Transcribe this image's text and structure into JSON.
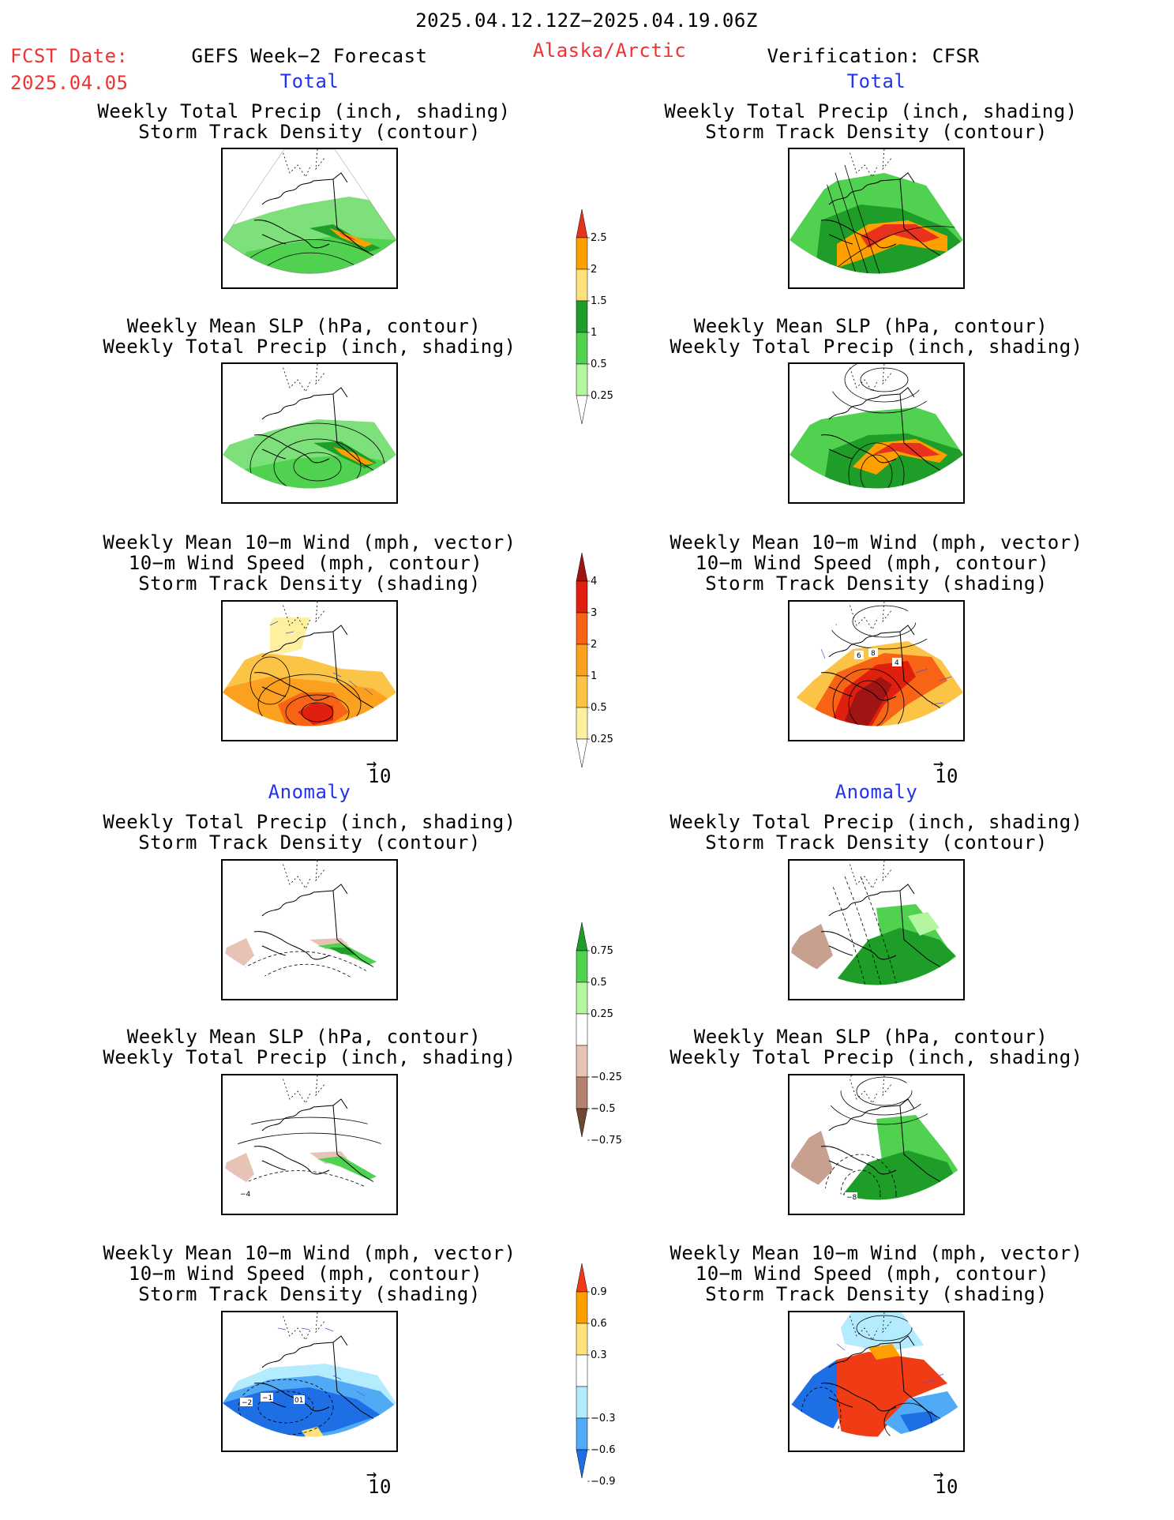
{
  "header": {
    "period": "2025.04.12.12Z−2025.04.19.06Z",
    "fcst_label": "FCST Date:",
    "fcst_date": "2025.04.05",
    "forecast_title": "GEFS Week−2 Forecast",
    "region": "Alaska/Arctic",
    "verification": "Verification: CFSR"
  },
  "sections": {
    "total": "Total",
    "anomaly": "Anomaly"
  },
  "titles": {
    "precip_track": [
      "Weekly Total Precip (inch, shading)",
      "Storm Track Density (contour)"
    ],
    "slp_precip": [
      "Weekly Mean SLP (hPa, contour)",
      "Weekly Total Precip (inch, shading)"
    ],
    "wind_track": [
      "Weekly Mean 10−m Wind (mph, vector)",
      "10−m Wind Speed (mph, contour)",
      "Storm Track Density (shading)"
    ]
  },
  "vector_ref": "10",
  "colorbars": {
    "precip_total": {
      "labels": [
        "2.5",
        "2",
        "1.5",
        "1",
        "0.5",
        "0.25"
      ],
      "colors": [
        "#e8321e",
        "#ffa000",
        "#ffe37a",
        "#1e9e28",
        "#50d250",
        "#b4f5a0"
      ]
    },
    "track_total": {
      "labels": [
        "4",
        "3",
        "2",
        "1",
        "0.5",
        "0.25"
      ],
      "colors": [
        "#a01414",
        "#e0200e",
        "#f86416",
        "#fca020",
        "#fcc446",
        "#fff0a0"
      ]
    },
    "precip_anom": {
      "labels": [
        "0.75",
        "0.5",
        "0.25",
        "−0.25",
        "−0.5",
        "−0.75"
      ],
      "colors": [
        "#1e9e28",
        "#50d250",
        "#b4f5a0",
        "#ffffff",
        "#e6c3b4",
        "#b4826e",
        "#6e4632"
      ]
    },
    "track_anom": {
      "labels": [
        "0.9",
        "0.6",
        "0.3",
        "−0.3",
        "−0.6",
        "−0.9"
      ],
      "colors": [
        "#f03c14",
        "#ffa000",
        "#ffe37a",
        "#ffffff",
        "#b4ebff",
        "#50aaf5",
        "#1e6ee6"
      ]
    }
  },
  "panel_labels": {
    "fc_wind_anom": [
      "−2",
      "−1",
      "01"
    ],
    "obs_wind_total": [
      "6",
      "8",
      "4"
    ],
    "fc_slp_anom": [
      "−4"
    ],
    "obs_slp_anom": [
      "−8"
    ]
  }
}
